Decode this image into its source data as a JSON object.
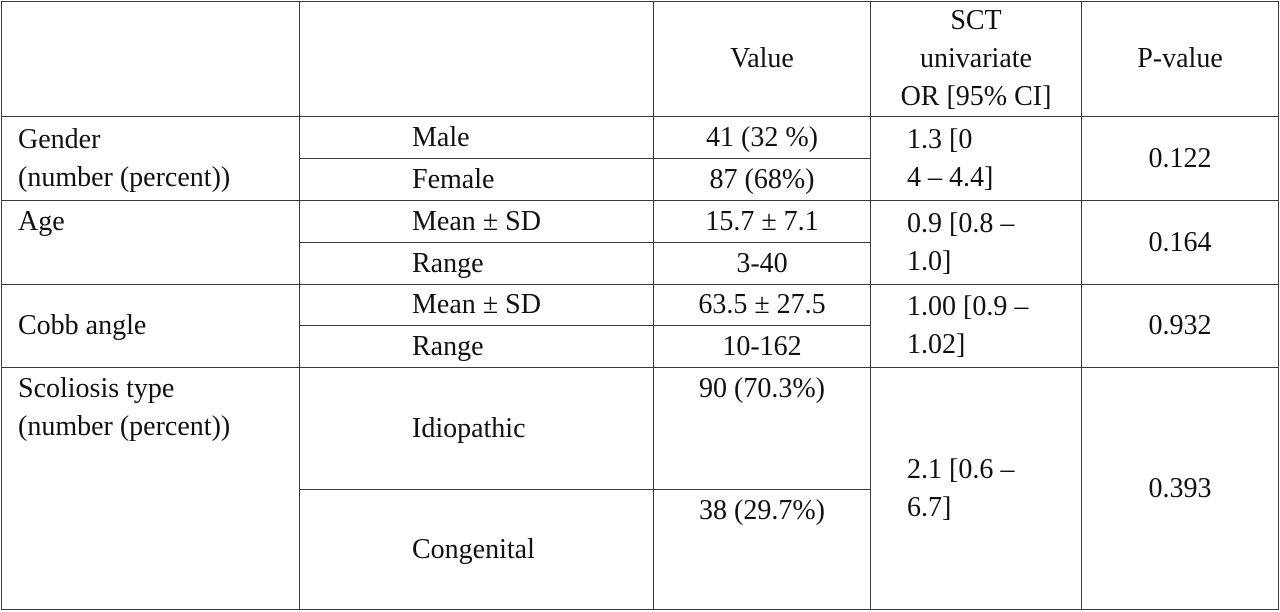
{
  "header": {
    "variable": "",
    "subgroup": "",
    "value": "Value",
    "or_line1": "SCT",
    "or_line2": "univariate",
    "or_line3": "OR [95% CI]",
    "pvalue": "P-value"
  },
  "rows": {
    "gender": {
      "label_line1": "Gender",
      "label_line2": "(number (percent))",
      "sub1": "Male",
      "val1": "41 (32 %)",
      "sub2": "Female",
      "val2": "87 (68%)",
      "or_line1": "1.3 [0",
      "or_line2": "4 – 4.4]",
      "pvalue": "0.122"
    },
    "age": {
      "label": "Age",
      "sub1": "Mean ± SD",
      "val1": "15.7 ± 7.1",
      "sub2": "Range",
      "val2": "3-40",
      "or_line1": "0.9 [0.8 –",
      "or_line2": "1.0]",
      "pvalue": "0.164"
    },
    "cobb": {
      "label": "Cobb angle",
      "sub1": "Mean ± SD",
      "val1": "63.5 ± 27.5",
      "sub2": "Range",
      "val2": "10-162",
      "or_line1": "1.00 [0.9 –",
      "or_line2": "1.02]",
      "pvalue": "0.932"
    },
    "scoliosis": {
      "label_line1": "Scoliosis type",
      "label_line2": "(number (percent))",
      "sub1": "Idiopathic",
      "val1": "90 (70.3%)",
      "sub2": "Congenital",
      "val2": "38 (29.7%)",
      "or_line1": "2.1 [0.6 –",
      "or_line2": "6.7]",
      "pvalue": "0.393"
    }
  }
}
